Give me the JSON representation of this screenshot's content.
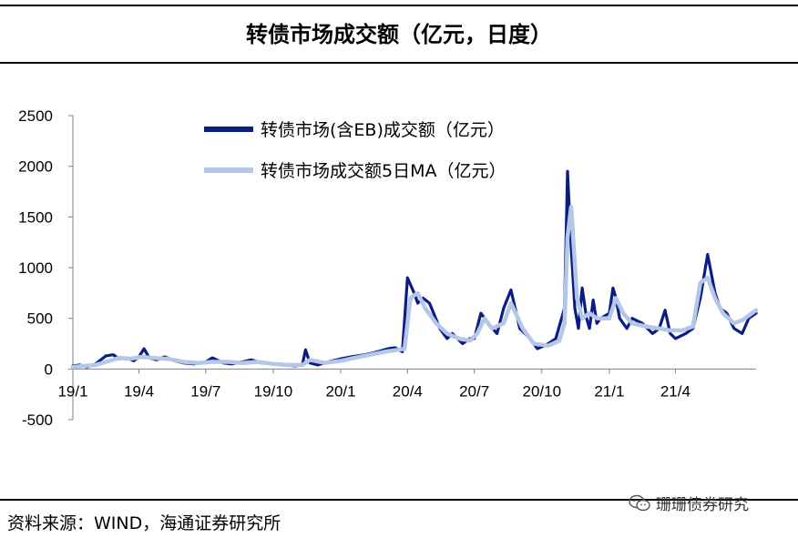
{
  "header": {
    "title": "转债市场成交额（亿元，日度）"
  },
  "footer": {
    "source": "资料来源：WIND，海通证券研究所",
    "watermark": "珊珊债券研究"
  },
  "chart_data": {
    "type": "line",
    "title": "转债市场成交额（亿元，日度）",
    "xlabel": "",
    "ylabel": "",
    "ylim": [
      -500,
      2500
    ],
    "yticks": [
      2500,
      2000,
      1500,
      1000,
      500,
      0,
      -500
    ],
    "xticks": [
      "19/1",
      "19/4",
      "19/7",
      "19/10",
      "20/1",
      "20/4",
      "20/7",
      "20/10",
      "21/1",
      "21/4"
    ],
    "xrange": [
      "2019-01-01",
      "2021-07-20"
    ],
    "grid": false,
    "legend": "top-center",
    "colors": {
      "daily": "#0b1d85",
      "ma5": "#b4c7e7"
    },
    "series": [
      {
        "name": "转债市场(含EB)成交额（亿元）",
        "x": [
          "2019-01-01",
          "2019-01-10",
          "2019-01-20",
          "2019-02-01",
          "2019-02-15",
          "2019-02-25",
          "2019-03-05",
          "2019-03-15",
          "2019-03-25",
          "2019-04-01",
          "2019-04-08",
          "2019-04-15",
          "2019-04-25",
          "2019-05-06",
          "2019-05-20",
          "2019-06-01",
          "2019-06-15",
          "2019-07-01",
          "2019-07-10",
          "2019-07-25",
          "2019-08-05",
          "2019-08-20",
          "2019-09-01",
          "2019-09-15",
          "2019-10-01",
          "2019-10-15",
          "2019-11-01",
          "2019-11-10",
          "2019-11-14",
          "2019-11-20",
          "2019-12-01",
          "2019-12-15",
          "2020-01-01",
          "2020-01-15",
          "2020-02-03",
          "2020-02-15",
          "2020-02-25",
          "2020-03-05",
          "2020-03-15",
          "2020-03-20",
          "2020-03-25",
          "2020-04-01",
          "2020-04-10",
          "2020-04-15",
          "2020-04-22",
          "2020-05-01",
          "2020-05-15",
          "2020-05-25",
          "2020-06-01",
          "2020-06-15",
          "2020-06-25",
          "2020-07-01",
          "2020-07-10",
          "2020-07-20",
          "2020-08-01",
          "2020-08-10",
          "2020-08-20",
          "2020-09-01",
          "2020-09-15",
          "2020-09-25",
          "2020-10-10",
          "2020-10-20",
          "2020-11-01",
          "2020-11-05",
          "2020-11-10",
          "2020-11-15",
          "2020-11-20",
          "2020-11-25",
          "2020-12-01",
          "2020-12-05",
          "2020-12-10",
          "2020-12-15",
          "2020-12-20",
          "2021-01-01",
          "2021-01-06",
          "2021-01-10",
          "2021-01-15",
          "2021-01-25",
          "2021-02-01",
          "2021-02-15",
          "2021-03-01",
          "2021-03-10",
          "2021-03-18",
          "2021-03-25",
          "2021-04-01",
          "2021-04-15",
          "2021-04-25",
          "2021-05-05",
          "2021-05-15",
          "2021-05-25",
          "2021-06-01",
          "2021-06-10",
          "2021-06-20",
          "2021-07-01",
          "2021-07-10",
          "2021-07-20"
        ],
        "y": [
          30,
          40,
          20,
          50,
          130,
          140,
          100,
          110,
          80,
          120,
          200,
          110,
          90,
          120,
          80,
          60,
          50,
          70,
          110,
          60,
          50,
          70,
          90,
          60,
          50,
          40,
          30,
          50,
          190,
          60,
          40,
          70,
          100,
          120,
          140,
          160,
          180,
          200,
          210,
          190,
          170,
          900,
          750,
          650,
          700,
          650,
          400,
          300,
          350,
          250,
          300,
          300,
          550,
          450,
          350,
          600,
          780,
          400,
          300,
          200,
          250,
          300,
          600,
          1950,
          1200,
          600,
          400,
          800,
          500,
          400,
          680,
          450,
          500,
          550,
          800,
          700,
          500,
          400,
          500,
          450,
          350,
          400,
          580,
          350,
          300,
          350,
          400,
          700,
          1130,
          750,
          600,
          550,
          400,
          350,
          500,
          550
        ]
      },
      {
        "name": "转债市场成交额5日MA（亿元）",
        "x": [
          "2019-01-01",
          "2019-01-15",
          "2019-02-01",
          "2019-02-20",
          "2019-03-05",
          "2019-03-20",
          "2019-04-05",
          "2019-04-20",
          "2019-05-10",
          "2019-06-01",
          "2019-06-20",
          "2019-07-10",
          "2019-08-01",
          "2019-08-20",
          "2019-09-10",
          "2019-10-01",
          "2019-10-20",
          "2019-11-10",
          "2019-11-20",
          "2019-12-10",
          "2020-01-01",
          "2020-01-20",
          "2020-02-10",
          "2020-03-01",
          "2020-03-20",
          "2020-03-28",
          "2020-04-05",
          "2020-04-15",
          "2020-04-25",
          "2020-05-10",
          "2020-05-25",
          "2020-06-10",
          "2020-06-25",
          "2020-07-05",
          "2020-07-15",
          "2020-07-25",
          "2020-08-10",
          "2020-08-20",
          "2020-09-05",
          "2020-09-20",
          "2020-10-10",
          "2020-10-25",
          "2020-11-01",
          "2020-11-05",
          "2020-11-10",
          "2020-11-18",
          "2020-11-25",
          "2020-12-05",
          "2020-12-15",
          "2021-01-01",
          "2021-01-10",
          "2021-01-20",
          "2021-02-01",
          "2021-02-20",
          "2021-03-10",
          "2021-03-25",
          "2021-04-10",
          "2021-04-25",
          "2021-05-05",
          "2021-05-15",
          "2021-05-25",
          "2021-06-05",
          "2021-06-20",
          "2021-07-01",
          "2021-07-20"
        ],
        "y": [
          20,
          30,
          40,
          80,
          110,
          100,
          120,
          110,
          100,
          70,
          60,
          70,
          70,
          60,
          70,
          50,
          40,
          40,
          90,
          60,
          80,
          110,
          140,
          170,
          190,
          200,
          700,
          750,
          600,
          450,
          350,
          300,
          280,
          350,
          500,
          400,
          450,
          650,
          400,
          250,
          230,
          280,
          450,
          1300,
          1600,
          700,
          500,
          550,
          500,
          500,
          700,
          550,
          450,
          420,
          400,
          380,
          380,
          420,
          850,
          900,
          700,
          550,
          450,
          480,
          580
        ]
      }
    ]
  }
}
